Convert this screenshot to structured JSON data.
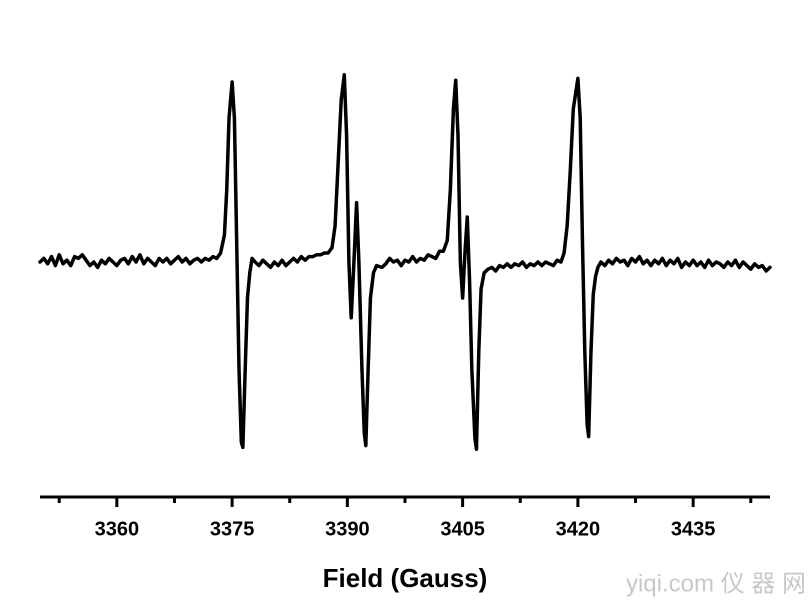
{
  "chart_data": {
    "type": "line",
    "xlabel": "Field (Gauss)",
    "watermark": "yiqi.com 仪 器 网",
    "xlim": [
      3350,
      3445
    ],
    "xticks": [
      3360,
      3375,
      3390,
      3405,
      3420,
      3435
    ],
    "xminorticks": [
      3352.5,
      3367.5,
      3382.5,
      3397.5,
      3412.5,
      3427.5,
      3442.5
    ],
    "ylim": [
      -1.2,
      1.2
    ],
    "x": [
      3350,
      3350.5,
      3351,
      3351.5,
      3352,
      3352.5,
      3353,
      3353.5,
      3354,
      3354.5,
      3355,
      3355.5,
      3356,
      3356.5,
      3357,
      3357.5,
      3358,
      3358.5,
      3359,
      3359.5,
      3360,
      3360.5,
      3361,
      3361.5,
      3362,
      3362.5,
      3363,
      3363.5,
      3364,
      3364.5,
      3365,
      3365.5,
      3366,
      3366.5,
      3367,
      3367.5,
      3368,
      3368.5,
      3369,
      3369.5,
      3370,
      3370.5,
      3371,
      3371.5,
      3372,
      3372.5,
      3373,
      3373.5,
      3374,
      3374.3,
      3374.6,
      3375,
      3375.3,
      3375.6,
      3375.9,
      3376.2,
      3376.4,
      3376.7,
      3377,
      3377.3,
      3377.6,
      3378,
      3378.5,
      3379,
      3379.5,
      3380,
      3380.5,
      3381,
      3381.5,
      3382,
      3382.5,
      3383,
      3383.5,
      3384,
      3384.5,
      3385,
      3385.5,
      3386,
      3386.5,
      3387,
      3387.5,
      3388,
      3388.4,
      3388.8,
      3389.2,
      3389.6,
      3389.9,
      3390.2,
      3390.5,
      3390.8,
      3391.2,
      3391.5,
      3391.9,
      3392.2,
      3392.4,
      3392.7,
      3393,
      3393.4,
      3393.8,
      3394.5,
      3395,
      3395.5,
      3396,
      3396.5,
      3397,
      3397.5,
      3398,
      3398.5,
      3399,
      3399.5,
      3400,
      3400.5,
      3401,
      3401.5,
      3402,
      3402.5,
      3403,
      3403.4,
      3403.8,
      3404.1,
      3404.4,
      3404.7,
      3405,
      3405.3,
      3405.6,
      3405.9,
      3406.2,
      3406.6,
      3406.8,
      3407.1,
      3407.4,
      3407.8,
      3408.3,
      3408.8,
      3409.3,
      3409.8,
      3410.3,
      3410.8,
      3411.3,
      3411.8,
      3412.3,
      3412.8,
      3413.3,
      3413.8,
      3414.3,
      3414.8,
      3415.3,
      3415.8,
      3416.3,
      3416.8,
      3417.3,
      3417.8,
      3418.2,
      3418.6,
      3419,
      3419.4,
      3420,
      3420.3,
      3420.6,
      3420.9,
      3421.2,
      3421.4,
      3421.7,
      3422,
      3422.3,
      3422.6,
      3423,
      3423.5,
      3424,
      3424.5,
      3425,
      3425.5,
      3426,
      3426.5,
      3427,
      3427.5,
      3428,
      3428.5,
      3429,
      3429.5,
      3430,
      3430.5,
      3431,
      3431.5,
      3432,
      3432.5,
      3433,
      3433.5,
      3434,
      3434.5,
      3435,
      3435.5,
      3436,
      3436.5,
      3437,
      3437.5,
      3438,
      3438.5,
      3439,
      3439.5,
      3440,
      3440.5,
      3441,
      3441.5,
      3442,
      3442.5,
      3443,
      3443.5,
      3444,
      3444.5,
      3445
    ],
    "series": [
      {
        "color": "#000000",
        "values": [
          0,
          0.02,
          -0.01,
          0.03,
          -0.02,
          0.04,
          -0.01,
          0.01,
          -0.02,
          0.03,
          0.02,
          0.04,
          0.01,
          -0.02,
          0,
          -0.03,
          0.01,
          -0.01,
          0.02,
          0,
          -0.02,
          0.01,
          0.02,
          -0.01,
          0.03,
          0,
          0.04,
          -0.01,
          0.02,
          0,
          -0.02,
          0.02,
          0,
          0.02,
          -0.01,
          0.01,
          0.03,
          0,
          0.02,
          -0.01,
          0.01,
          0.02,
          0,
          0.02,
          0.01,
          0.03,
          0.02,
          0.05,
          0.15,
          0.4,
          0.8,
          1.0,
          0.8,
          0.1,
          -0.6,
          -1.0,
          -1.03,
          -0.6,
          -0.2,
          -0.06,
          0.02,
          0,
          -0.02,
          0.01,
          -0.01,
          -0.03,
          0,
          -0.02,
          0.01,
          -0.02,
          0,
          0.02,
          0,
          0.03,
          0.01,
          0.03,
          0.03,
          0.04,
          0.04,
          0.05,
          0.05,
          0.08,
          0.2,
          0.55,
          0.9,
          1.04,
          0.7,
          0,
          -0.31,
          -0.05,
          0.33,
          0,
          -0.6,
          -0.95,
          -1.02,
          -0.6,
          -0.2,
          -0.06,
          -0.02,
          -0.03,
          -0.01,
          0.02,
          0,
          0.01,
          -0.02,
          0.01,
          0,
          0.03,
          0,
          0.02,
          0.01,
          0.04,
          0.03,
          0.02,
          0.06,
          0.06,
          0.12,
          0.4,
          0.85,
          1.01,
          0.7,
          0,
          -0.2,
          0.05,
          0.25,
          -0.1,
          -0.6,
          -0.98,
          -1.04,
          -0.5,
          -0.15,
          -0.06,
          -0.04,
          -0.03,
          -0.05,
          -0.02,
          -0.03,
          -0.01,
          -0.03,
          -0.01,
          -0.02,
          0,
          -0.03,
          -0.01,
          -0.02,
          0,
          -0.02,
          0,
          -0.01,
          -0.02,
          0.01,
          0,
          0.05,
          0.2,
          0.5,
          0.85,
          1.02,
          0.8,
          0.1,
          -0.5,
          -0.9,
          -0.97,
          -0.5,
          -0.18,
          -0.08,
          -0.03,
          0,
          -0.02,
          0.01,
          -0.01,
          0.02,
          0,
          0.01,
          -0.02,
          0.02,
          0,
          0.03,
          -0.01,
          0.01,
          -0.02,
          0.01,
          -0.01,
          0.02,
          -0.02,
          0.01,
          -0.01,
          0.02,
          -0.03,
          0,
          -0.02,
          0.01,
          -0.02,
          0,
          -0.03,
          0.01,
          -0.02,
          0,
          -0.01,
          -0.03,
          0,
          -0.02,
          0.01,
          -0.03,
          0,
          -0.02,
          -0.04,
          -0.01,
          -0.03,
          -0.02,
          -0.05,
          -0.03
        ]
      }
    ]
  }
}
